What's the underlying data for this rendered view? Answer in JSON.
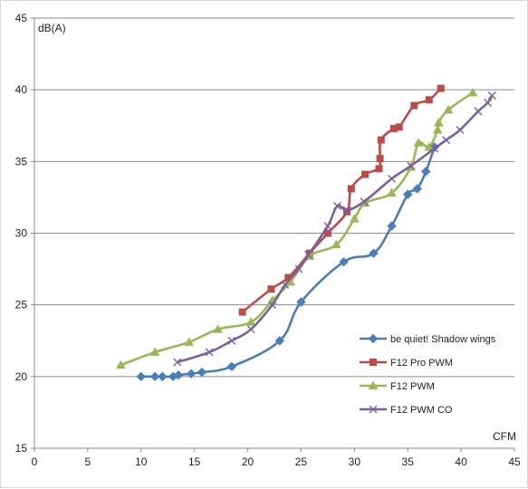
{
  "chart_data": {
    "type": "line",
    "title": "",
    "xlabel": "CFM",
    "ylabel": "dB(A)",
    "xlim": [
      0,
      45
    ],
    "ylim": [
      15,
      45
    ],
    "xticks": [
      0,
      5,
      10,
      15,
      20,
      25,
      30,
      35,
      40,
      45
    ],
    "yticks": [
      15,
      20,
      25,
      30,
      35,
      40,
      45
    ],
    "grid": "horizontal",
    "legend_position": "right",
    "series": [
      {
        "name": "be quiet! Shadow wings",
        "color": "#4a7ebb",
        "marker": "diamond",
        "points": [
          [
            10,
            20.0
          ],
          [
            11.3,
            20.0
          ],
          [
            12,
            20.0
          ],
          [
            13,
            20.0
          ],
          [
            13.5,
            20.1
          ],
          [
            14.7,
            20.2
          ],
          [
            15.7,
            20.3
          ],
          [
            18.5,
            20.7
          ],
          [
            23,
            22.5
          ],
          [
            25,
            25.2
          ],
          [
            29,
            28.0
          ],
          [
            31.8,
            28.6
          ],
          [
            33.5,
            30.5
          ],
          [
            35,
            32.7
          ],
          [
            35.9,
            33.1
          ],
          [
            36.7,
            34.3
          ],
          [
            37.5,
            36.0
          ]
        ]
      },
      {
        "name": "F12 Pro PWM",
        "color": "#be4b48",
        "marker": "square",
        "points": [
          [
            19.5,
            24.5
          ],
          [
            22.2,
            26.1
          ],
          [
            23.8,
            26.9
          ],
          [
            25.8,
            28.6
          ],
          [
            27.5,
            30.0
          ],
          [
            29.3,
            31.5
          ],
          [
            29.7,
            33.1
          ],
          [
            31,
            34.1
          ],
          [
            32.3,
            34.5
          ],
          [
            32.4,
            35.2
          ],
          [
            32.5,
            36.5
          ],
          [
            33.7,
            37.3
          ],
          [
            34.2,
            37.4
          ],
          [
            35.6,
            38.9
          ],
          [
            37,
            39.3
          ],
          [
            38.1,
            40.1
          ]
        ]
      },
      {
        "name": "F12 PWM",
        "color": "#98b954",
        "marker": "triangle",
        "points": [
          [
            8.1,
            20.8
          ],
          [
            11.3,
            21.7
          ],
          [
            14.5,
            22.4
          ],
          [
            17.2,
            23.3
          ],
          [
            20.3,
            23.8
          ],
          [
            22.3,
            25.3
          ],
          [
            24,
            26.6
          ],
          [
            25.8,
            28.4
          ],
          [
            28.3,
            29.2
          ],
          [
            30,
            31.0
          ],
          [
            31,
            32.1
          ],
          [
            33.5,
            32.8
          ],
          [
            35.3,
            34.6
          ],
          [
            36,
            36.3
          ],
          [
            37,
            36.0
          ],
          [
            37.8,
            37.2
          ],
          [
            37.9,
            37.7
          ],
          [
            38.8,
            38.6
          ],
          [
            41.1,
            39.8
          ]
        ]
      },
      {
        "name": "F12 PWM CO",
        "color": "#7d60a0",
        "marker": "x",
        "points": [
          [
            13.4,
            21.0
          ],
          [
            16.4,
            21.7
          ],
          [
            18.5,
            22.5
          ],
          [
            20.3,
            23.3
          ],
          [
            22.3,
            25.0
          ],
          [
            23.5,
            26.4
          ],
          [
            24.8,
            27.5
          ],
          [
            25.7,
            28.5
          ],
          [
            27.5,
            30.5
          ],
          [
            28.4,
            31.9
          ],
          [
            29.3,
            31.6
          ],
          [
            30.9,
            32.2
          ],
          [
            33.5,
            33.8
          ],
          [
            35.3,
            34.7
          ],
          [
            37.5,
            35.9
          ],
          [
            38.6,
            36.5
          ],
          [
            39.9,
            37.2
          ],
          [
            41.6,
            38.5
          ],
          [
            42.5,
            39.1
          ],
          [
            42.9,
            39.6
          ]
        ]
      }
    ]
  }
}
